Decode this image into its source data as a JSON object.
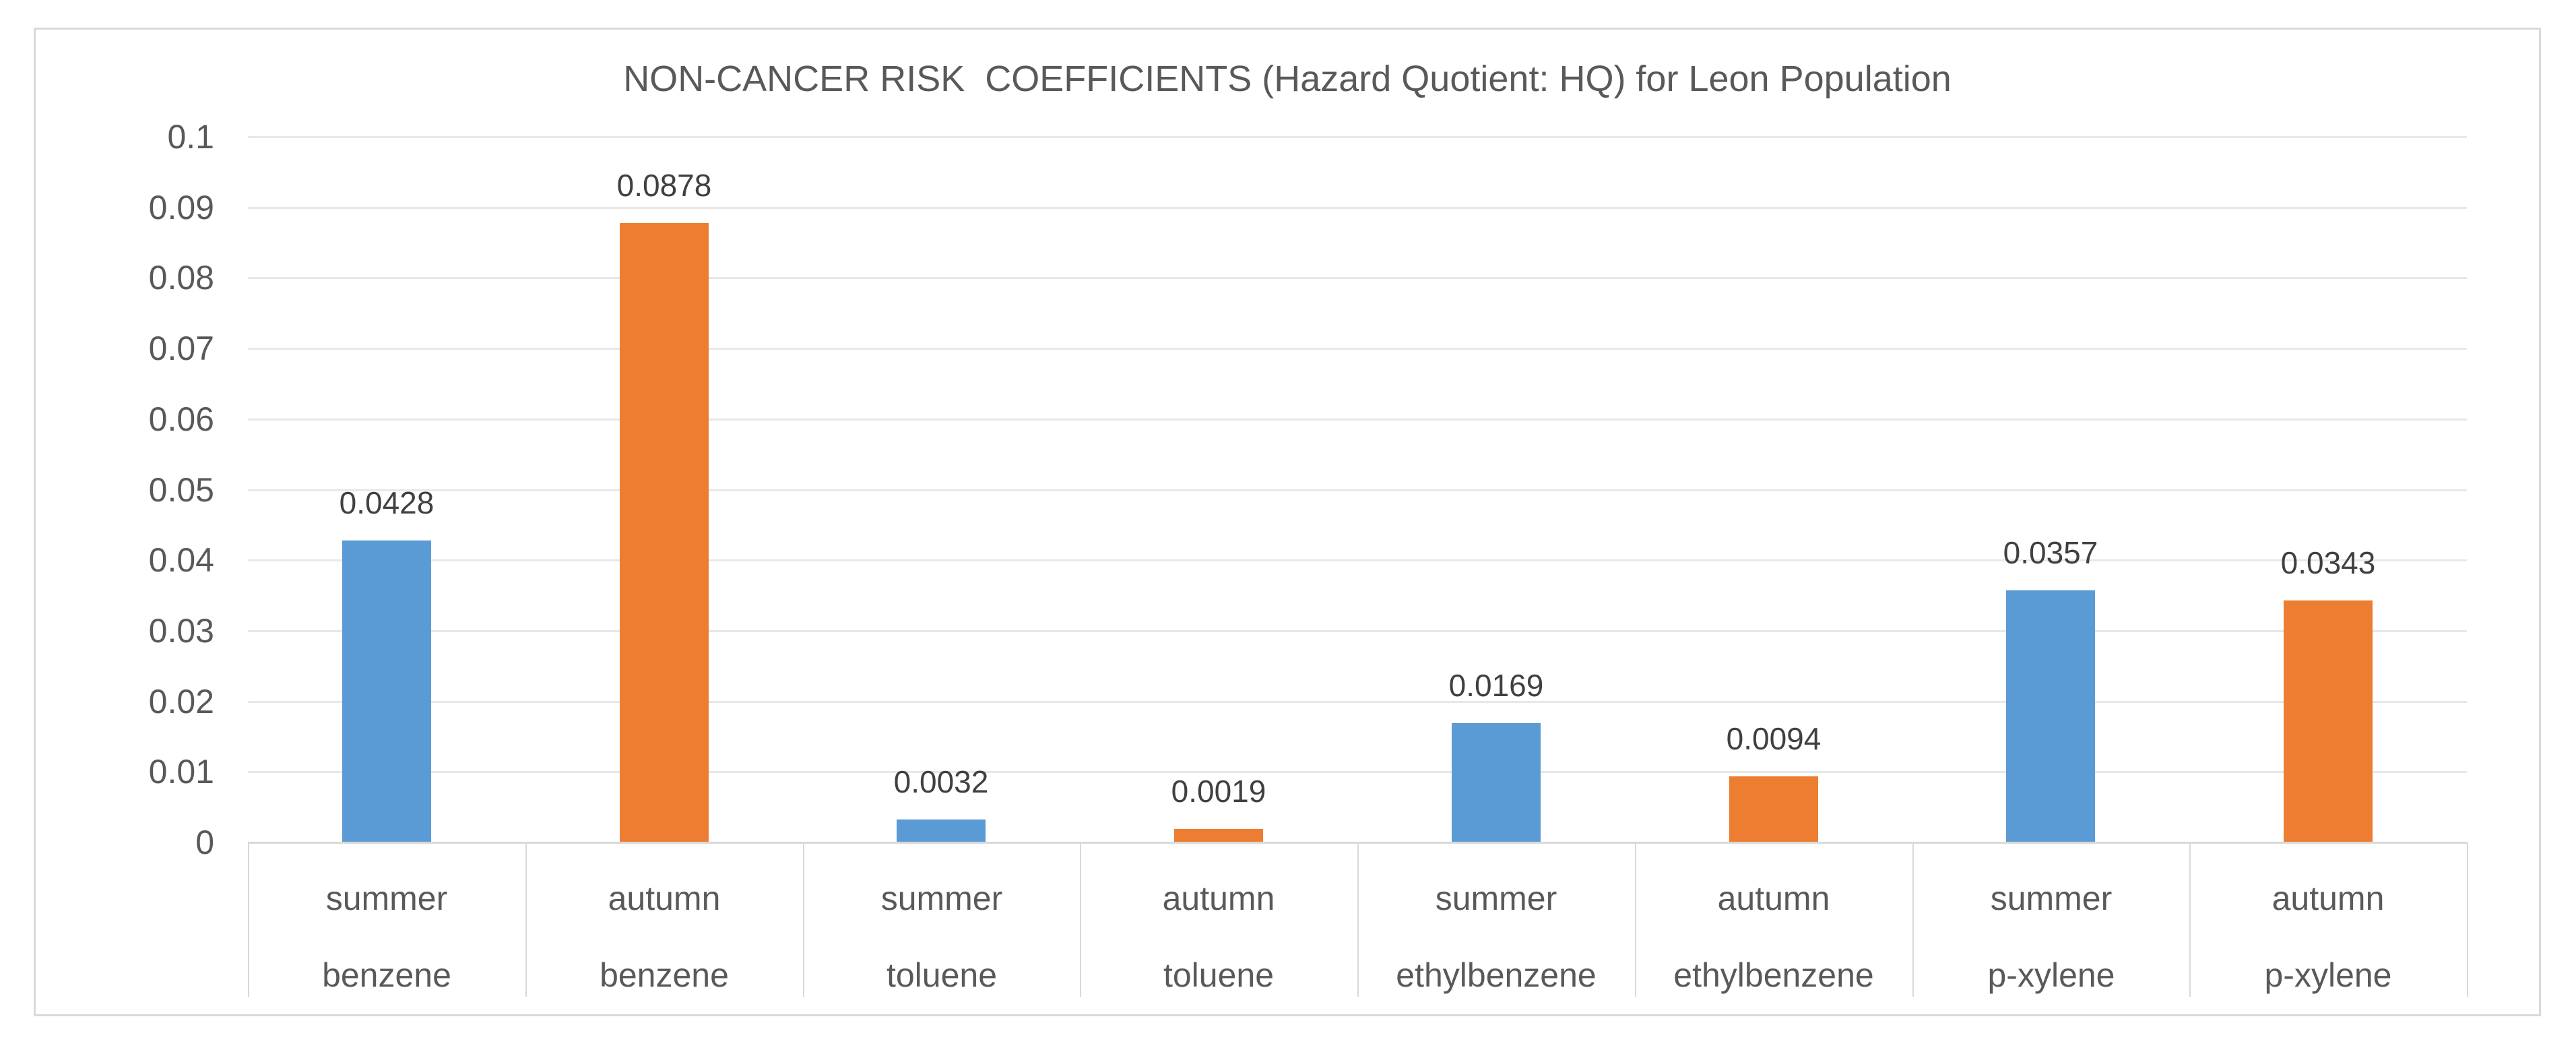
{
  "chart_data": {
    "type": "bar",
    "title": "NON-CANCER RISK  COEFFICIENTS (Hazard Quotient: HQ) for Leon Population",
    "xlabel": "",
    "ylabel": "",
    "ylim": [
      0,
      0.1
    ],
    "ytick_step": 0.01,
    "ytick_labels": [
      "0",
      "0.01",
      "0.02",
      "0.03",
      "0.04",
      "0.05",
      "0.06",
      "0.07",
      "0.08",
      "0.09",
      "0.1"
    ],
    "grid": true,
    "legend_position": "none",
    "season_colors": {
      "summer": "#5B9BD5",
      "autumn": "#ED7D31"
    },
    "axis_text_color": "#595959",
    "data_label_color": "#404040",
    "gridline_color": "#E8E8E8",
    "axis_line_color": "#D9D9D9",
    "bars": [
      {
        "season": "summer",
        "chemical": "benzene",
        "value": 0.0428,
        "label": "0.0428",
        "color": "#5B9BD5"
      },
      {
        "season": "autumn",
        "chemical": "benzene",
        "value": 0.0878,
        "label": "0.0878",
        "color": "#ED7D31"
      },
      {
        "season": "summer",
        "chemical": "toluene",
        "value": 0.0032,
        "label": "0.0032",
        "color": "#5B9BD5"
      },
      {
        "season": "autumn",
        "chemical": "toluene",
        "value": 0.0019,
        "label": "0.0019",
        "color": "#ED7D31"
      },
      {
        "season": "summer",
        "chemical": "ethylbenzene",
        "value": 0.0169,
        "label": "0.0169",
        "color": "#5B9BD5"
      },
      {
        "season": "autumn",
        "chemical": "ethylbenzene",
        "value": 0.0094,
        "label": "0.0094",
        "color": "#ED7D31"
      },
      {
        "season": "summer",
        "chemical": "p-xylene",
        "value": 0.0357,
        "label": "0.0357",
        "color": "#5B9BD5"
      },
      {
        "season": "autumn",
        "chemical": "p-xylene",
        "value": 0.0343,
        "label": "0.0343",
        "color": "#ED7D31"
      }
    ]
  }
}
